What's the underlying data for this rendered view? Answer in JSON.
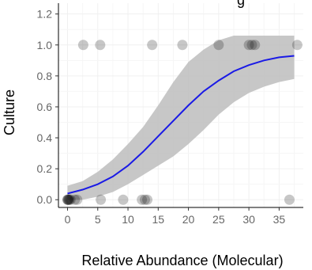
{
  "chart_data": {
    "type": "scatter",
    "title": "g",
    "xlabel": "Relative Abundance (Molecular)",
    "ylabel": "Culture",
    "xlim": [
      -1.5,
      39
    ],
    "ylim": [
      -0.05,
      1.27
    ],
    "x_ticks": [
      "0",
      "5",
      "10",
      "15",
      "20",
      "25",
      "30",
      "35"
    ],
    "y_ticks": [
      "0.0",
      "0.2",
      "0.4",
      "0.6",
      "0.8",
      "1.0",
      "1.2"
    ],
    "grid": true,
    "colors": {
      "points": "#000000",
      "fit_line": "#1a1ae6",
      "confidence_band": "#bdbdbd",
      "grid": "#f0f0f0"
    },
    "points": [
      {
        "x": 0,
        "y": 0
      },
      {
        "x": 0,
        "y": 0
      },
      {
        "x": 0.1,
        "y": 0
      },
      {
        "x": 0.2,
        "y": 0
      },
      {
        "x": 0.3,
        "y": 0
      },
      {
        "x": 0.5,
        "y": 0
      },
      {
        "x": 1.2,
        "y": 0
      },
      {
        "x": 1.6,
        "y": 0
      },
      {
        "x": 5.5,
        "y": 0
      },
      {
        "x": 9.2,
        "y": 0
      },
      {
        "x": 12.3,
        "y": 0
      },
      {
        "x": 12.8,
        "y": 0
      },
      {
        "x": 13.2,
        "y": 0
      },
      {
        "x": 36.7,
        "y": 0
      },
      {
        "x": 2.6,
        "y": 1
      },
      {
        "x": 5.4,
        "y": 1
      },
      {
        "x": 14.0,
        "y": 1
      },
      {
        "x": 19.0,
        "y": 1
      },
      {
        "x": 25.0,
        "y": 1
      },
      {
        "x": 30.0,
        "y": 1
      },
      {
        "x": 30.5,
        "y": 1
      },
      {
        "x": 31.0,
        "y": 1
      },
      {
        "x": 38.0,
        "y": 1
      }
    ],
    "fit": {
      "x": [
        0,
        2.5,
        5,
        7.5,
        10,
        12.5,
        15,
        17.5,
        20,
        22.5,
        25,
        27.5,
        30,
        32.5,
        35,
        37.5
      ],
      "y": [
        0.04,
        0.065,
        0.1,
        0.15,
        0.22,
        0.31,
        0.41,
        0.51,
        0.61,
        0.7,
        0.77,
        0.83,
        0.87,
        0.9,
        0.92,
        0.93
      ],
      "lower": [
        0.0,
        0.0,
        0.02,
        0.05,
        0.1,
        0.16,
        0.22,
        0.28,
        0.36,
        0.45,
        0.55,
        0.63,
        0.69,
        0.73,
        0.76,
        0.78
      ],
      "upper": [
        0.09,
        0.12,
        0.18,
        0.26,
        0.36,
        0.47,
        0.61,
        0.76,
        0.89,
        0.97,
        1.03,
        1.06,
        1.06,
        1.06,
        1.06,
        1.06
      ]
    }
  }
}
